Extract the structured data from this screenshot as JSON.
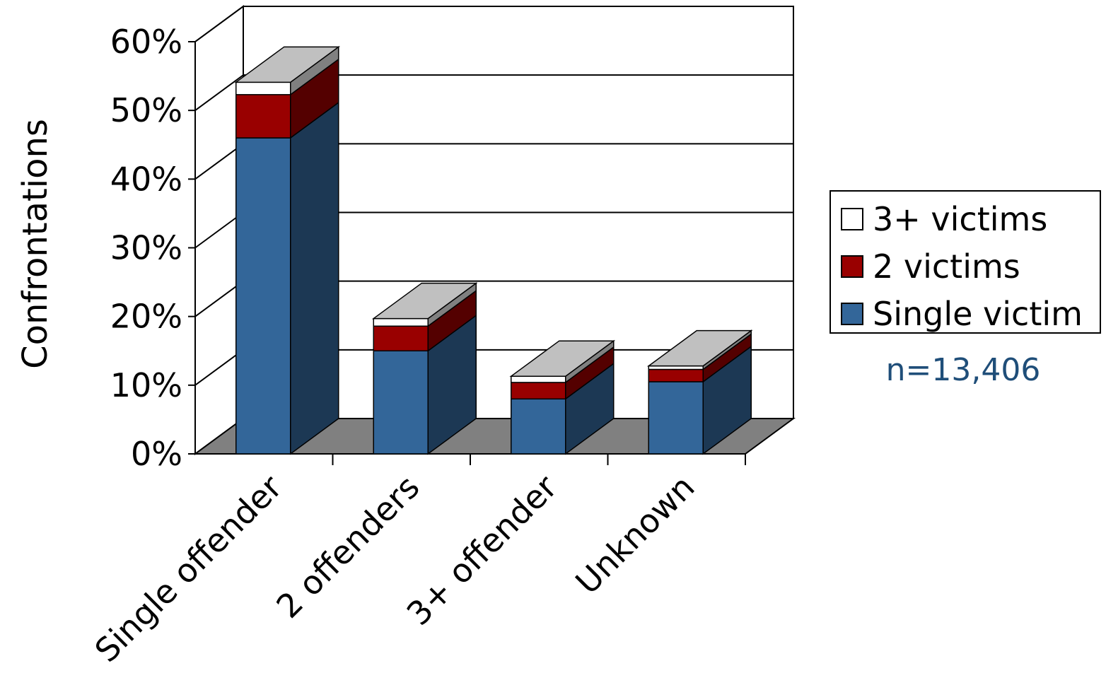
{
  "chart_data": {
    "type": "bar",
    "stacked": true,
    "style": "3d-stacked-column",
    "ylabel": "Confrontations",
    "xlabel": "",
    "ylim": [
      0,
      0.6
    ],
    "yticks": [
      "0%",
      "10%",
      "20%",
      "30%",
      "40%",
      "50%",
      "60%"
    ],
    "categories": [
      "Single offender",
      "2 offenders",
      "3+ offender",
      "Unknown"
    ],
    "series": [
      {
        "name": "Single victim",
        "values": [
          0.46,
          0.15,
          0.08,
          0.105
        ],
        "color": "#336699"
      },
      {
        "name": "2 victims",
        "values": [
          0.063,
          0.036,
          0.024,
          0.018
        ],
        "color": "#990000"
      },
      {
        "name": "3+ victims",
        "values": [
          0.018,
          0.011,
          0.009,
          0.005
        ],
        "color": "#ffffff"
      }
    ],
    "legend_order": [
      "3+ victims",
      "2 victims",
      "Single victim"
    ],
    "legend_position": "right",
    "grid": true,
    "annotation": "n=13,406",
    "annotation_color": "#1f4e79",
    "floor_color": "#808080",
    "top_face_color": "#c0c0c0"
  }
}
